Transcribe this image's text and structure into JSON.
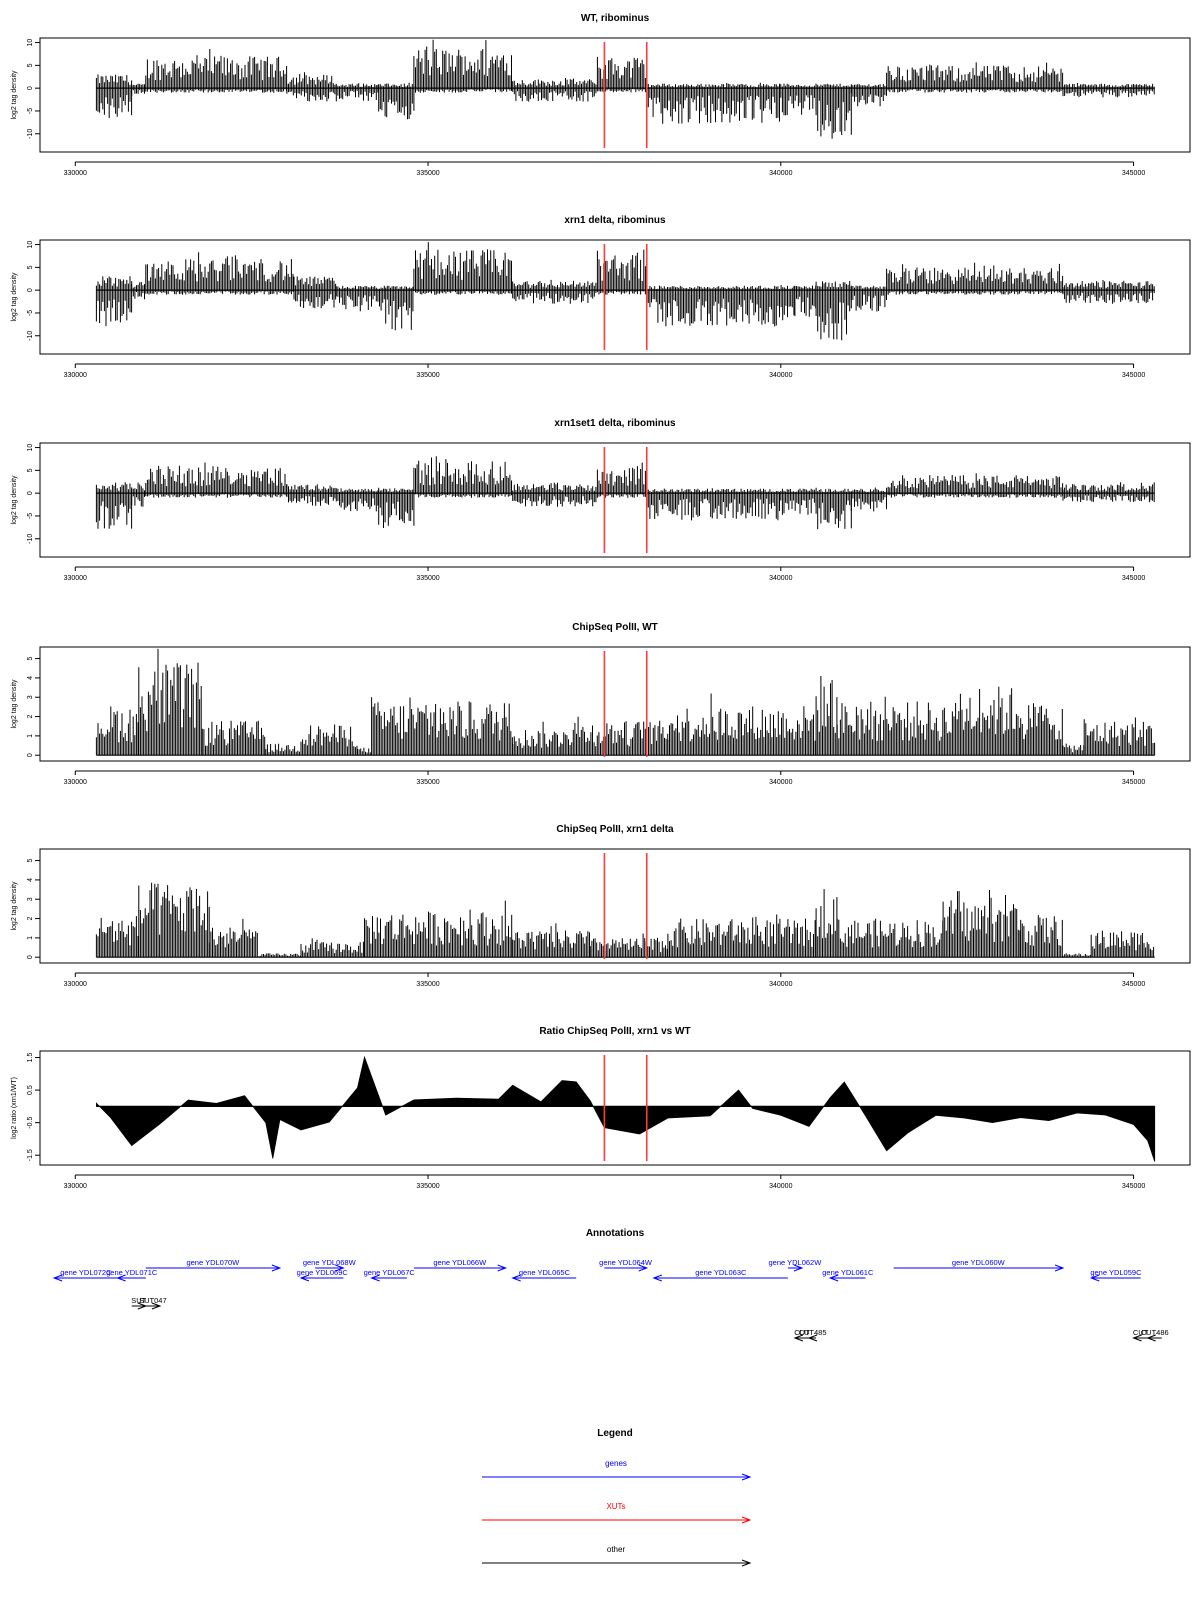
{
  "colors": {
    "genes": "#0000ff",
    "xuts": "#ff0000",
    "other": "#000000",
    "bars": "#000000",
    "marker": "#ff3b3b"
  },
  "chart_data": [
    {
      "type": "bar",
      "title": "WT, ribominus",
      "ylabel": "log2 tag density",
      "ylim": [
        -14,
        11
      ],
      "yticks": [
        10,
        5,
        0,
        -5,
        -10
      ],
      "xlim": [
        329500,
        345800
      ],
      "xticks": [
        330000,
        335000,
        340000,
        345000
      ],
      "markers": [
        337500,
        338100
      ],
      "x_start": 330300,
      "x_end": 345300,
      "profile": [
        {
          "start": 330300,
          "end": 330800,
          "top": 3,
          "bottom": -7
        },
        {
          "start": 330800,
          "end": 331000,
          "top": 1,
          "bottom": -2
        },
        {
          "start": 331000,
          "end": 333000,
          "top": 7,
          "bottom": -1
        },
        {
          "start": 333000,
          "end": 333700,
          "top": 3,
          "bottom": -3
        },
        {
          "start": 333700,
          "end": 334300,
          "top": 1,
          "bottom": -3
        },
        {
          "start": 334300,
          "end": 334800,
          "top": 1,
          "bottom": -7
        },
        {
          "start": 334800,
          "end": 336200,
          "top": 9,
          "bottom": -1
        },
        {
          "start": 336200,
          "end": 337400,
          "top": 2,
          "bottom": -3
        },
        {
          "start": 337400,
          "end": 338100,
          "top": 7,
          "bottom": -1
        },
        {
          "start": 338100,
          "end": 340000,
          "top": 1,
          "bottom": -8
        },
        {
          "start": 340000,
          "end": 340500,
          "top": 1,
          "bottom": -6
        },
        {
          "start": 340500,
          "end": 341000,
          "top": 1,
          "bottom": -12
        },
        {
          "start": 341000,
          "end": 341500,
          "top": 1,
          "bottom": -4
        },
        {
          "start": 341500,
          "end": 344000,
          "top": 5,
          "bottom": -1
        },
        {
          "start": 344000,
          "end": 345300,
          "top": 1,
          "bottom": -2
        }
      ]
    },
    {
      "type": "bar",
      "title": "xrn1 delta, ribominus",
      "ylabel": "log2 tag density",
      "ylim": [
        -14,
        11
      ],
      "yticks": [
        10,
        5,
        0,
        -5,
        -10
      ],
      "xlim": [
        329500,
        345800
      ],
      "xticks": [
        330000,
        335000,
        340000,
        345000
      ],
      "markers": [
        337500,
        338100
      ],
      "x_start": 330300,
      "x_end": 345300,
      "profile": [
        {
          "start": 330300,
          "end": 330800,
          "top": 3,
          "bottom": -8
        },
        {
          "start": 330800,
          "end": 331000,
          "top": 2,
          "bottom": -2
        },
        {
          "start": 331000,
          "end": 333100,
          "top": 7,
          "bottom": -1
        },
        {
          "start": 333100,
          "end": 333700,
          "top": 3,
          "bottom": -4
        },
        {
          "start": 333700,
          "end": 334400,
          "top": 1,
          "bottom": -5
        },
        {
          "start": 334400,
          "end": 334800,
          "top": 1,
          "bottom": -9
        },
        {
          "start": 334800,
          "end": 336200,
          "top": 9,
          "bottom": -1
        },
        {
          "start": 336200,
          "end": 337400,
          "top": 2,
          "bottom": -3
        },
        {
          "start": 337400,
          "end": 338100,
          "top": 8,
          "bottom": -1
        },
        {
          "start": 338100,
          "end": 340200,
          "top": 1,
          "bottom": -8
        },
        {
          "start": 340200,
          "end": 340500,
          "top": 1,
          "bottom": -6
        },
        {
          "start": 340500,
          "end": 341000,
          "top": 2,
          "bottom": -11
        },
        {
          "start": 341000,
          "end": 341500,
          "top": 1,
          "bottom": -5
        },
        {
          "start": 341500,
          "end": 344000,
          "top": 5,
          "bottom": -1
        },
        {
          "start": 344000,
          "end": 345300,
          "top": 2,
          "bottom": -3
        }
      ]
    },
    {
      "type": "bar",
      "title": "xrn1set1 delta, ribominus",
      "ylabel": "log2 tag density",
      "ylim": [
        -14,
        11
      ],
      "yticks": [
        10,
        5,
        0,
        -5,
        -10
      ],
      "xlim": [
        329500,
        345800
      ],
      "xticks": [
        330000,
        335000,
        340000,
        345000
      ],
      "markers": [
        337500,
        338100
      ],
      "x_start": 330300,
      "x_end": 345300,
      "profile": [
        {
          "start": 330300,
          "end": 330800,
          "top": 2,
          "bottom": -8
        },
        {
          "start": 330800,
          "end": 331000,
          "top": 2,
          "bottom": -3
        },
        {
          "start": 331000,
          "end": 333000,
          "top": 6,
          "bottom": -1
        },
        {
          "start": 333000,
          "end": 333700,
          "top": 2,
          "bottom": -3
        },
        {
          "start": 333700,
          "end": 334300,
          "top": 1,
          "bottom": -4
        },
        {
          "start": 334300,
          "end": 334800,
          "top": 1,
          "bottom": -8
        },
        {
          "start": 334800,
          "end": 336200,
          "top": 7,
          "bottom": -1
        },
        {
          "start": 336200,
          "end": 337400,
          "top": 2,
          "bottom": -3
        },
        {
          "start": 337400,
          "end": 338100,
          "top": 6,
          "bottom": -1
        },
        {
          "start": 338100,
          "end": 340000,
          "top": 1,
          "bottom": -6
        },
        {
          "start": 340000,
          "end": 340500,
          "top": 1,
          "bottom": -5
        },
        {
          "start": 340500,
          "end": 341000,
          "top": 1,
          "bottom": -8
        },
        {
          "start": 341000,
          "end": 341500,
          "top": 1,
          "bottom": -4
        },
        {
          "start": 341500,
          "end": 344000,
          "top": 4,
          "bottom": -1
        },
        {
          "start": 344000,
          "end": 345300,
          "top": 2,
          "bottom": -2
        }
      ]
    },
    {
      "type": "bar",
      "title": "ChipSeq PolII, WT",
      "ylabel": "log2 tag density",
      "ylim": [
        -0.3,
        5.6
      ],
      "yticks": [
        5,
        4,
        3,
        2,
        1,
        0
      ],
      "xlim": [
        329500,
        345800
      ],
      "xticks": [
        330000,
        335000,
        340000,
        345000
      ],
      "markers": [
        337500,
        338100
      ],
      "x_start": 330300,
      "x_end": 345300,
      "profile": [
        {
          "start": 330300,
          "end": 330900,
          "top": 2.6,
          "bottom": 0
        },
        {
          "start": 330900,
          "end": 331800,
          "top": 4.8,
          "bottom": 0
        },
        {
          "start": 331800,
          "end": 332700,
          "top": 1.8,
          "bottom": 0
        },
        {
          "start": 332700,
          "end": 333200,
          "top": 0.6,
          "bottom": 0
        },
        {
          "start": 333200,
          "end": 334000,
          "top": 1.6,
          "bottom": 0
        },
        {
          "start": 334000,
          "end": 334200,
          "top": 0.4,
          "bottom": 0
        },
        {
          "start": 334200,
          "end": 336200,
          "top": 2.8,
          "bottom": 0
        },
        {
          "start": 336200,
          "end": 336900,
          "top": 1.4,
          "bottom": 0
        },
        {
          "start": 336900,
          "end": 338400,
          "top": 1.8,
          "bottom": 0
        },
        {
          "start": 338400,
          "end": 340500,
          "top": 2.6,
          "bottom": 0
        },
        {
          "start": 340500,
          "end": 340800,
          "top": 4.2,
          "bottom": 0
        },
        {
          "start": 340800,
          "end": 342500,
          "top": 2.8,
          "bottom": 0
        },
        {
          "start": 342500,
          "end": 343400,
          "top": 3.6,
          "bottom": 0
        },
        {
          "start": 343400,
          "end": 344000,
          "top": 2.8,
          "bottom": 0
        },
        {
          "start": 344000,
          "end": 344300,
          "top": 0.6,
          "bottom": 0
        },
        {
          "start": 344300,
          "end": 345300,
          "top": 1.8,
          "bottom": 0
        }
      ]
    },
    {
      "type": "bar",
      "title": "ChipSeq PolII, xrn1 delta",
      "ylabel": "log2 tag density",
      "ylim": [
        -0.3,
        5.6
      ],
      "yticks": [
        5,
        4,
        3,
        2,
        1,
        0
      ],
      "xlim": [
        329500,
        345800
      ],
      "xticks": [
        330000,
        335000,
        340000,
        345000
      ],
      "markers": [
        337500,
        338100
      ],
      "x_start": 330300,
      "x_end": 345300,
      "profile": [
        {
          "start": 330300,
          "end": 330900,
          "top": 2.2,
          "bottom": 0
        },
        {
          "start": 330900,
          "end": 331900,
          "top": 3.9,
          "bottom": 0
        },
        {
          "start": 331900,
          "end": 332600,
          "top": 1.6,
          "bottom": 0
        },
        {
          "start": 332600,
          "end": 333200,
          "top": 0.2,
          "bottom": 0
        },
        {
          "start": 333200,
          "end": 334100,
          "top": 0.8,
          "bottom": 0
        },
        {
          "start": 334100,
          "end": 336200,
          "top": 2.4,
          "bottom": 0
        },
        {
          "start": 336200,
          "end": 337300,
          "top": 1.4,
          "bottom": 0
        },
        {
          "start": 337300,
          "end": 338400,
          "top": 1.0,
          "bottom": 0
        },
        {
          "start": 338400,
          "end": 340500,
          "top": 2.0,
          "bottom": 0
        },
        {
          "start": 340500,
          "end": 340800,
          "top": 3.8,
          "bottom": 0
        },
        {
          "start": 340800,
          "end": 342300,
          "top": 2.0,
          "bottom": 0
        },
        {
          "start": 342300,
          "end": 343400,
          "top": 3.0,
          "bottom": 0
        },
        {
          "start": 343400,
          "end": 344000,
          "top": 2.2,
          "bottom": 0
        },
        {
          "start": 344000,
          "end": 344400,
          "top": 0.2,
          "bottom": 0
        },
        {
          "start": 344400,
          "end": 345300,
          "top": 1.4,
          "bottom": 0
        }
      ]
    },
    {
      "type": "area",
      "title": "Ratio ChipSeq PolII, xrn1 vs WT",
      "ylabel": "log2 ratio (xrn1/WT)",
      "ylim": [
        -1.8,
        1.7
      ],
      "yticks": [
        1.5,
        0.5,
        -0.5,
        -1.5
      ],
      "xlim": [
        329500,
        345800
      ],
      "xticks": [
        330000,
        335000,
        340000,
        345000
      ],
      "markers": [
        337500,
        338100
      ],
      "x_start": 330300,
      "x_end": 345300,
      "x": [
        330300,
        330500,
        330800,
        331200,
        331600,
        332000,
        332400,
        332700,
        332800,
        332900,
        333200,
        333600,
        334000,
        334100,
        334400,
        334800,
        335400,
        336000,
        336200,
        336600,
        336900,
        337100,
        337300,
        337500,
        338000,
        338400,
        339000,
        339400,
        339600,
        340000,
        340400,
        340700,
        340900,
        341200,
        341500,
        341800,
        342200,
        342600,
        343000,
        343400,
        343800,
        344200,
        344600,
        345000,
        345200,
        345300
      ],
      "y": [
        0.1,
        -0.4,
        -1.2,
        -0.5,
        0.2,
        0.1,
        0.3,
        -0.5,
        -1.6,
        -0.4,
        -0.7,
        -0.5,
        0.6,
        1.5,
        -0.3,
        0.2,
        0.3,
        0.2,
        0.6,
        0.1,
        0.8,
        0.7,
        0.2,
        -0.6,
        -0.9,
        -0.3,
        -0.3,
        0.5,
        -0.1,
        -0.3,
        -0.6,
        0.3,
        0.7,
        -0.3,
        -1.4,
        -0.8,
        -0.3,
        -0.3,
        -0.5,
        -0.3,
        -0.4,
        -0.2,
        -0.3,
        -0.5,
        -1.0,
        -1.7
      ]
    },
    {
      "type": "annotations",
      "title": "Annotations",
      "xlim": [
        329500,
        345800
      ],
      "features": [
        {
          "label": "gene YDL072C",
          "kind": "gene",
          "start": 329700,
          "end": 330600,
          "dir": "-",
          "row": 2
        },
        {
          "label": "gene YDL071C",
          "kind": "gene",
          "start": 330600,
          "end": 331000,
          "dir": "-",
          "row": 2
        },
        {
          "label": "gene YDL070W",
          "kind": "gene",
          "start": 331000,
          "end": 332900,
          "dir": "+",
          "row": 1
        },
        {
          "label": "gene YDL069C",
          "kind": "gene",
          "start": 333200,
          "end": 333800,
          "dir": "-",
          "row": 2
        },
        {
          "label": "gene YDL068W",
          "kind": "gene",
          "start": 333400,
          "end": 333800,
          "dir": "+",
          "row": 1
        },
        {
          "label": "gene YDL067C",
          "kind": "gene",
          "start": 334200,
          "end": 334700,
          "dir": "-",
          "row": 2
        },
        {
          "label": "gene YDL066W",
          "kind": "gene",
          "start": 334800,
          "end": 336100,
          "dir": "+",
          "row": 1
        },
        {
          "label": "gene YDL065C",
          "kind": "gene",
          "start": 336200,
          "end": 337100,
          "dir": "-",
          "row": 2
        },
        {
          "label": "gene YDL064W",
          "kind": "gene",
          "start": 337500,
          "end": 338100,
          "dir": "+",
          "row": 1
        },
        {
          "label": "gene YDL063C",
          "kind": "gene",
          "start": 338200,
          "end": 340100,
          "dir": "-",
          "row": 2
        },
        {
          "label": "gene YDL062W",
          "kind": "gene",
          "start": 340100,
          "end": 340300,
          "dir": "+",
          "row": 1
        },
        {
          "label": "gene YDL061C",
          "kind": "gene",
          "start": 340700,
          "end": 341200,
          "dir": "-",
          "row": 2
        },
        {
          "label": "gene YDL060W",
          "kind": "gene",
          "start": 341600,
          "end": 344000,
          "dir": "+",
          "row": 1
        },
        {
          "label": "gene YDL059C",
          "kind": "gene",
          "start": 344400,
          "end": 345100,
          "dir": "-",
          "row": 2
        },
        {
          "label": "SUT",
          "kind": "other",
          "start": 330800,
          "end": 331000,
          "dir": "+",
          "row": 3
        },
        {
          "label": "SUT047",
          "kind": "other",
          "start": 331000,
          "end": 331200,
          "dir": "+",
          "row": 3
        },
        {
          "label": "CUT",
          "kind": "other",
          "start": 340200,
          "end": 340400,
          "dir": "-",
          "row": 4
        },
        {
          "label": "CUT485",
          "kind": "other",
          "start": 340400,
          "end": 340500,
          "dir": "-",
          "row": 4
        },
        {
          "label": "CUT",
          "kind": "other",
          "start": 345000,
          "end": 345200,
          "dir": "-",
          "row": 4
        },
        {
          "label": "CUT486",
          "kind": "other",
          "start": 345200,
          "end": 345400,
          "dir": "-",
          "row": 4
        }
      ]
    },
    {
      "type": "legend",
      "title": "Legend",
      "entries": [
        {
          "label": "genes",
          "kind": "genes"
        },
        {
          "label": "XUTs",
          "kind": "xuts"
        },
        {
          "label": "other",
          "kind": "other"
        }
      ]
    }
  ]
}
